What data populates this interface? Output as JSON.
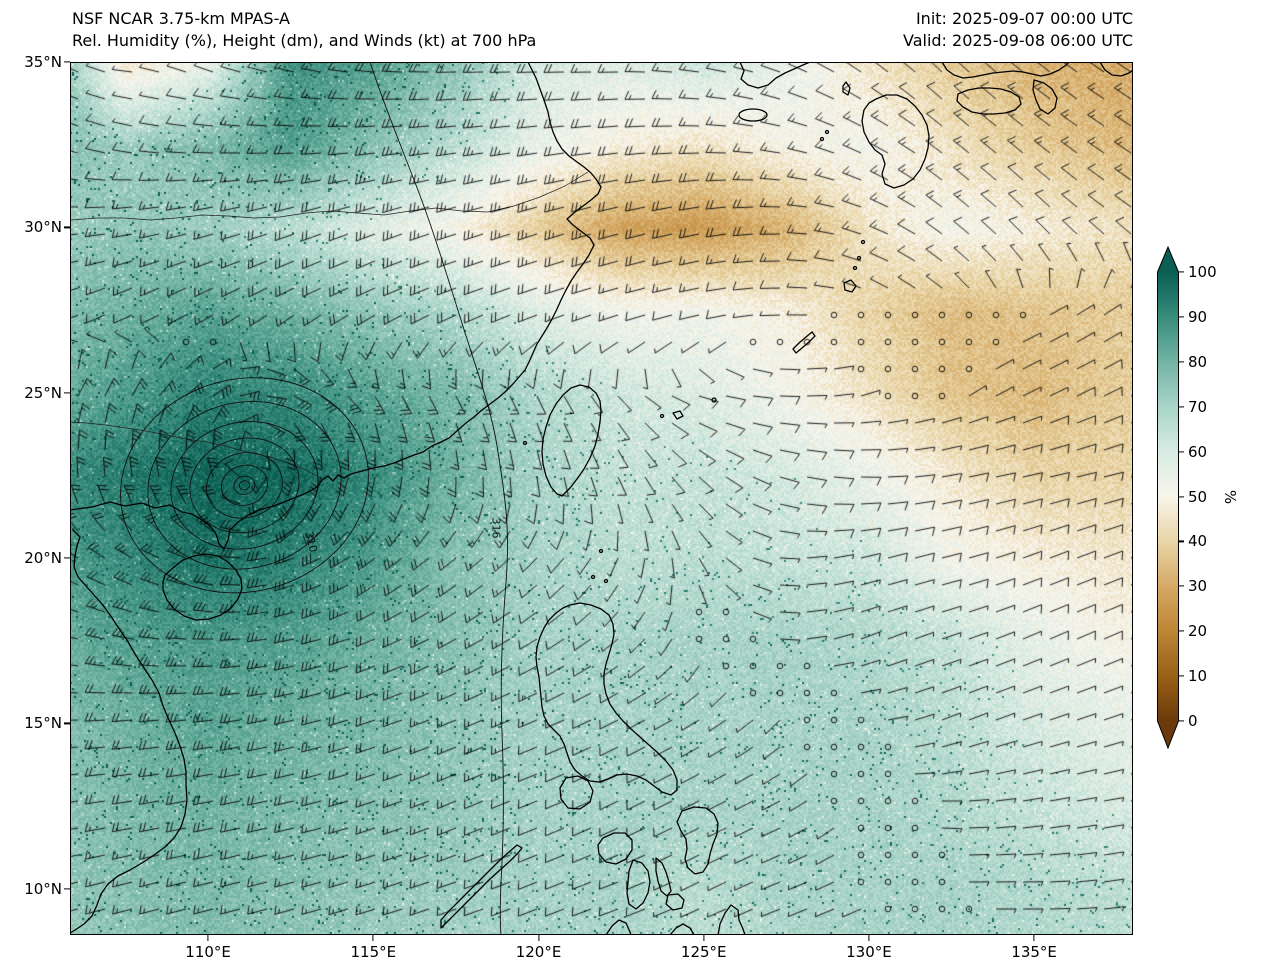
{
  "header": {
    "model": "NSF NCAR 3.75-km MPAS-A",
    "field": "Rel. Humidity (%), Height (dm), and Winds (kt) at 700 hPa",
    "init": "Init: 2025-09-07 00:00 UTC",
    "valid": "Valid: 2025-09-08 06:00 UTC"
  },
  "chart_data": {
    "type": "heatmap",
    "title": "NSF NCAR 3.75-km MPAS-A",
    "subtitle": "Rel. Humidity (%), Height (dm), and Winds (kt) at 700 hPa",
    "level": "700 hPa",
    "units": {
      "humidity": "%",
      "height": "dm",
      "wind": "kt"
    },
    "projection": "lat-lon",
    "lon_range": [
      105.8,
      138.0
    ],
    "lat_range": [
      8.6,
      35.0
    ],
    "x_ticks": [
      {
        "lon": 110,
        "label": "110°E"
      },
      {
        "lon": 115,
        "label": "115°E"
      },
      {
        "lon": 120,
        "label": "120°E"
      },
      {
        "lon": 125,
        "label": "125°E"
      },
      {
        "lon": 130,
        "label": "130°E"
      },
      {
        "lon": 135,
        "label": "135°E"
      }
    ],
    "y_ticks": [
      {
        "lat": 35,
        "label": "35°N"
      },
      {
        "lat": 30,
        "label": "30°N"
      },
      {
        "lat": 25,
        "label": "25°N"
      },
      {
        "lat": 20,
        "label": "20°N"
      },
      {
        "lat": 15,
        "label": "15°N"
      },
      {
        "lat": 10,
        "label": "10°N"
      }
    ],
    "colorbar": {
      "label": "%",
      "min": 0,
      "max": 100,
      "ticks": [
        100,
        90,
        80,
        70,
        60,
        50,
        40,
        30,
        20,
        10,
        0
      ],
      "stops": [
        {
          "value": 0,
          "color": "#6b3a0c"
        },
        {
          "value": 10,
          "color": "#9a6018"
        },
        {
          "value": 20,
          "color": "#bd8536"
        },
        {
          "value": 30,
          "color": "#d5aa66"
        },
        {
          "value": 40,
          "color": "#e9d5a6"
        },
        {
          "value": 50,
          "color": "#f8f5ec"
        },
        {
          "value": 60,
          "color": "#d8ebe3"
        },
        {
          "value": 70,
          "color": "#a9d4c8"
        },
        {
          "value": 80,
          "color": "#72b4a4"
        },
        {
          "value": 90,
          "color": "#388c7c"
        },
        {
          "value": 100,
          "color": "#0a5e52"
        }
      ]
    },
    "rh_grid": {
      "lons": [
        105,
        107.5,
        110,
        112.5,
        115,
        117.5,
        120,
        122.5,
        125,
        127.5,
        130,
        132.5,
        135,
        137.5,
        140
      ],
      "lats": [
        35,
        32.5,
        30,
        27.5,
        25,
        22.5,
        20,
        17.5,
        15,
        12.5,
        10,
        7.5
      ],
      "values": [
        [
          85,
          45,
          55,
          88,
          85,
          75,
          60,
          58,
          62,
          55,
          45,
          38,
          32,
          30,
          30
        ],
        [
          78,
          72,
          78,
          86,
          76,
          66,
          55,
          48,
          45,
          50,
          52,
          44,
          38,
          34,
          32
        ],
        [
          72,
          74,
          72,
          66,
          58,
          50,
          38,
          28,
          26,
          32,
          45,
          52,
          48,
          44,
          40
        ],
        [
          76,
          80,
          84,
          80,
          74,
          68,
          58,
          52,
          52,
          48,
          40,
          34,
          36,
          38,
          36
        ],
        [
          80,
          86,
          92,
          90,
          84,
          78,
          68,
          62,
          58,
          52,
          44,
          36,
          34,
          38,
          40
        ],
        [
          88,
          94,
          99,
          98,
          90,
          80,
          70,
          64,
          64,
          60,
          54,
          46,
          40,
          40,
          42
        ],
        [
          85,
          90,
          96,
          92,
          86,
          76,
          70,
          66,
          66,
          64,
          62,
          52,
          48,
          46,
          46
        ],
        [
          80,
          85,
          86,
          85,
          80,
          76,
          70,
          70,
          70,
          70,
          68,
          64,
          56,
          50,
          50
        ],
        [
          76,
          80,
          84,
          80,
          78,
          74,
          70,
          70,
          70,
          70,
          70,
          66,
          60,
          56,
          54
        ],
        [
          74,
          78,
          80,
          78,
          76,
          74,
          70,
          70,
          70,
          70,
          70,
          68,
          64,
          60,
          58
        ],
        [
          74,
          76,
          78,
          76,
          74,
          72,
          70,
          70,
          66,
          70,
          70,
          70,
          68,
          66,
          62
        ],
        [
          72,
          74,
          76,
          74,
          72,
          70,
          70,
          68,
          66,
          68,
          70,
          70,
          68,
          66,
          64
        ]
      ]
    },
    "wind_grid_kt": {
      "lons": [
        105,
        107.5,
        110,
        112.5,
        115,
        117.5,
        120,
        122.5,
        125,
        127.5,
        130,
        132.5,
        135,
        137.5,
        140
      ],
      "lats": [
        35,
        32.5,
        30,
        27.5,
        25,
        22.5,
        20,
        17.5,
        15,
        12.5,
        10,
        7.5
      ],
      "u": [
        [
          12,
          2,
          4,
          14,
          18,
          20,
          18,
          15,
          12,
          10,
          8,
          8,
          10,
          12,
          12
        ],
        [
          10,
          8,
          14,
          18,
          22,
          24,
          22,
          20,
          18,
          15,
          12,
          10,
          10,
          12,
          12
        ],
        [
          12,
          14,
          16,
          18,
          22,
          25,
          25,
          22,
          20,
          18,
          14,
          10,
          8,
          8,
          8
        ],
        [
          10,
          12,
          14,
          16,
          18,
          20,
          18,
          14,
          10,
          5,
          -1,
          0,
          -2,
          -6,
          -8
        ],
        [
          -5,
          -8,
          -25,
          -28,
          -12,
          -8,
          -5,
          -5,
          -8,
          -8,
          -2,
          -1,
          -6,
          -8,
          -8
        ],
        [
          0,
          2,
          8,
          10,
          5,
          0,
          -2,
          -4,
          -6,
          -8,
          -10,
          -10,
          -9,
          -8,
          -8
        ],
        [
          15,
          20,
          30,
          30,
          20,
          15,
          8,
          2,
          -2,
          -5,
          -8,
          -8,
          -8,
          -8,
          -8
        ],
        [
          20,
          25,
          28,
          25,
          20,
          15,
          10,
          5,
          0,
          -3,
          -5,
          -6,
          -7,
          -7,
          -7
        ],
        [
          18,
          22,
          25,
          22,
          18,
          15,
          12,
          8,
          5,
          2,
          -2,
          -5,
          -6,
          -6,
          -6
        ],
        [
          15,
          18,
          20,
          18,
          15,
          12,
          10,
          8,
          6,
          4,
          0,
          -4,
          -6,
          -6,
          -6
        ],
        [
          12,
          15,
          16,
          15,
          13,
          12,
          10,
          8,
          6,
          5,
          2,
          -2,
          -5,
          -6,
          -6
        ],
        [
          10,
          12,
          14,
          13,
          12,
          10,
          9,
          8,
          6,
          5,
          3,
          0,
          -4,
          -5,
          -5
        ]
      ],
      "v": [
        [
          -6,
          0,
          -2,
          -4,
          -2,
          0,
          0,
          0,
          -2,
          -4,
          -6,
          -8,
          -8,
          -8,
          -8
        ],
        [
          -4,
          -2,
          -1,
          0,
          2,
          3,
          3,
          2,
          0,
          -3,
          -6,
          -8,
          -8,
          -8,
          -8
        ],
        [
          0,
          2,
          4,
          6,
          8,
          8,
          8,
          6,
          4,
          0,
          -5,
          -8,
          -8,
          -6,
          -6
        ],
        [
          4,
          6,
          8,
          9,
          9,
          8,
          6,
          4,
          2,
          0,
          0,
          0,
          -1,
          -4,
          -5
        ],
        [
          -8,
          -15,
          -17,
          12,
          20,
          15,
          10,
          5,
          2,
          0,
          -1,
          -1,
          -3,
          -4,
          -4
        ],
        [
          -20,
          -25,
          -35,
          35,
          25,
          18,
          12,
          8,
          5,
          2,
          0,
          -2,
          -2,
          -2,
          -2
        ],
        [
          -10,
          -12,
          -10,
          10,
          15,
          12,
          8,
          5,
          3,
          0,
          -2,
          -2,
          -3,
          -3,
          -3
        ],
        [
          -5,
          -5,
          0,
          5,
          8,
          8,
          6,
          4,
          2,
          0,
          -2,
          -2,
          -3,
          -3,
          -3
        ],
        [
          0,
          2,
          3,
          5,
          6,
          6,
          5,
          4,
          3,
          2,
          0,
          -2,
          -2,
          -2,
          -2
        ],
        [
          2,
          3,
          4,
          4,
          5,
          5,
          4,
          4,
          3,
          2,
          1,
          0,
          -1,
          -1,
          -1
        ],
        [
          3,
          4,
          4,
          4,
          4,
          4,
          4,
          3,
          3,
          2,
          1,
          0,
          0,
          -1,
          -1
        ],
        [
          3,
          3,
          4,
          4,
          4,
          4,
          3,
          3,
          2,
          2,
          1,
          0,
          0,
          0,
          -1
        ]
      ]
    },
    "height_contours": {
      "low_center": {
        "lon": 111.1,
        "lat": 22.2
      },
      "labels": [
        {
          "text": "310",
          "lon": 113.1,
          "lat": 20.5,
          "rotation": 75
        },
        {
          "text": "316",
          "lon": 118.7,
          "lat": 20.9,
          "rotation": 90
        }
      ]
    }
  }
}
